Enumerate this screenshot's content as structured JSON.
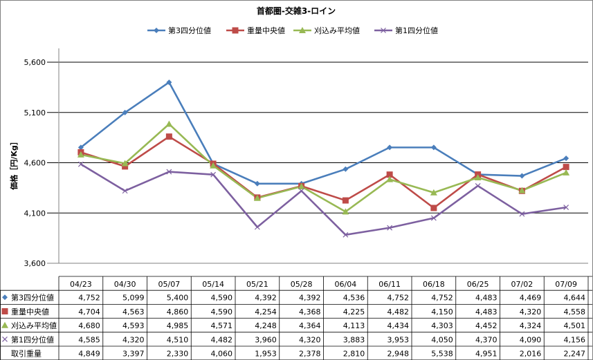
{
  "chart_data": {
    "type": "line",
    "title": "首都圏-交雑3-ロイン",
    "ylabel": "価格［円/Kg］",
    "xlabel": "",
    "categories": [
      "04/23",
      "04/30",
      "05/07",
      "05/14",
      "05/21",
      "05/28",
      "06/04",
      "06/11",
      "06/18",
      "06/25",
      "07/02",
      "07/09"
    ],
    "ylim": [
      3600,
      5600
    ],
    "yticks": [
      3600,
      4100,
      4600,
      5100,
      5600
    ],
    "ytick_labels": [
      "3,600",
      "4,100",
      "4,600",
      "5,100",
      "5,600"
    ],
    "grid": "horizontal",
    "legend_position": "top",
    "series": [
      {
        "name": "第3四分位値",
        "color": "#4a7ebb",
        "marker": "diamond",
        "marker_color": "#4a7ebb",
        "values": [
          4752,
          5099,
          5400,
          4590,
          4392,
          4392,
          4536,
          4752,
          4752,
          4483,
          4469,
          4644
        ],
        "labels": [
          "4,752",
          "5,099",
          "5,400",
          "4,590",
          "4,392",
          "4,392",
          "4,536",
          "4,752",
          "4,752",
          "4,483",
          "4,469",
          "4,644"
        ]
      },
      {
        "name": "重量中央値",
        "color": "#be4b48",
        "marker": "square",
        "marker_color": "#be4b48",
        "values": [
          4704,
          4563,
          4860,
          4590,
          4254,
          4368,
          4225,
          4482,
          4150,
          4483,
          4320,
          4558
        ],
        "labels": [
          "4,704",
          "4,563",
          "4,860",
          "4,590",
          "4,254",
          "4,368",
          "4,225",
          "4,482",
          "4,150",
          "4,483",
          "4,320",
          "4,558"
        ]
      },
      {
        "name": "刈込み平均値",
        "color": "#98b954",
        "marker": "triangle",
        "marker_color": "#98b954",
        "values": [
          4680,
          4593,
          4985,
          4571,
          4248,
          4364,
          4113,
          4434,
          4303,
          4452,
          4324,
          4501
        ],
        "labels": [
          "4,680",
          "4,593",
          "4,985",
          "4,571",
          "4,248",
          "4,364",
          "4,113",
          "4,434",
          "4,303",
          "4,452",
          "4,324",
          "4,501"
        ]
      },
      {
        "name": "第1四分位値",
        "color": "#7d60a0",
        "marker": "x",
        "marker_color": "#7d60a0",
        "values": [
          4585,
          4320,
          4510,
          4482,
          3960,
          4320,
          3883,
          3953,
          4050,
          4370,
          4090,
          4156
        ],
        "labels": [
          "4,585",
          "4,320",
          "4,510",
          "4,482",
          "3,960",
          "4,320",
          "3,883",
          "3,953",
          "4,050",
          "4,370",
          "4,090",
          "4,156"
        ]
      }
    ],
    "table_extra_row": {
      "name": "取引重量",
      "values": [
        4849,
        3397,
        2330,
        4060,
        1953,
        2378,
        2810,
        2948,
        5538,
        4951,
        2016,
        2247
      ],
      "labels": [
        "4,849",
        "3,397",
        "2,330",
        "4,060",
        "1,953",
        "2,378",
        "2,810",
        "2,948",
        "5,538",
        "4,951",
        "2,016",
        "2,247"
      ]
    }
  }
}
